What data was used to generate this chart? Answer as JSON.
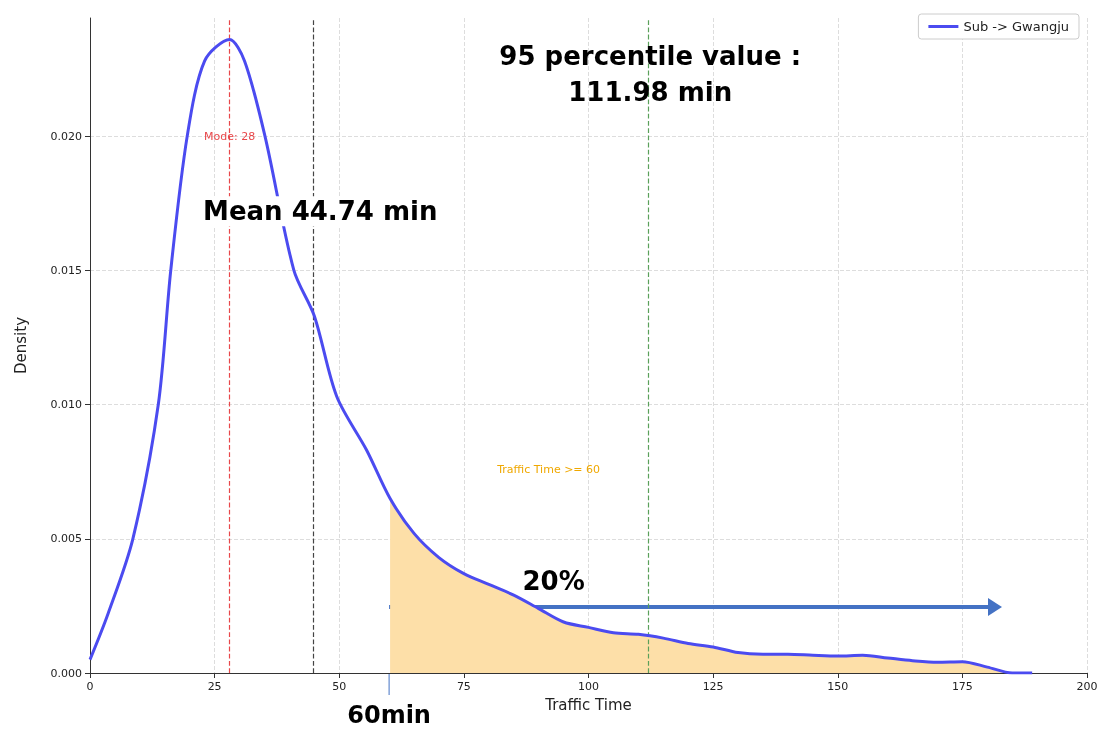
{
  "chart_data": {
    "type": "line",
    "xlabel": "Traffic Time",
    "ylabel": "Density",
    "xlim": [
      0,
      200
    ],
    "ylim": [
      0,
      0.0244
    ],
    "xticks": [
      0,
      25,
      50,
      75,
      100,
      125,
      150,
      175,
      200
    ],
    "yticks": [
      {
        "value": 0,
        "label": "0.000"
      },
      {
        "value": 0.005,
        "label": "0.005"
      },
      {
        "value": 0.01,
        "label": "0.010"
      },
      {
        "value": 0.015,
        "label": "0.015"
      },
      {
        "value": 0.02,
        "label": "0.020"
      }
    ],
    "grid": true,
    "legend": "top right",
    "line_style": "solid",
    "marker": "none",
    "series": [
      {
        "name": "Sub -> Gwangju",
        "color": "#4b4bf0",
        "x": [
          0,
          3.6,
          8.6,
          13.7,
          16.2,
          19.5,
          23,
          28,
          31,
          35.1,
          40.9,
          45,
          49.5,
          55.5,
          60.2,
          65,
          70,
          75,
          80,
          85,
          90,
          95,
          100,
          105,
          110,
          115,
          120,
          125,
          130,
          135,
          140,
          145,
          150,
          155,
          160,
          165,
          170,
          175,
          180,
          185,
          189
        ],
        "values": [
          0.0005,
          0.0022,
          0.005,
          0.01,
          0.015,
          0.02,
          0.0228,
          0.0236,
          0.0228,
          0.02,
          0.015,
          0.0133,
          0.0103,
          0.0083,
          0.0065,
          0.0052,
          0.0043,
          0.0037,
          0.0033,
          0.0029,
          0.0024,
          0.0019,
          0.0017,
          0.0015,
          0.00144,
          0.0013,
          0.0011,
          0.00097,
          0.00076,
          0.0007,
          0.0007,
          0.00066,
          0.00063,
          0.00066,
          0.00056,
          0.00046,
          0.0004,
          0.00042,
          0.00022,
          0,
          0
        ]
      },
      {
        "type": "area",
        "color": "#fddfa8",
        "x": [
          60.2,
          65,
          70,
          75,
          80,
          85,
          90,
          95,
          100,
          105,
          110,
          115,
          120,
          125,
          130,
          135,
          140,
          145,
          150,
          155,
          160,
          165,
          170,
          175,
          180,
          185,
          189
        ],
        "values": [
          0.0065,
          0.0052,
          0.0043,
          0.0037,
          0.0033,
          0.0029,
          0.0024,
          0.0019,
          0.0017,
          0.0015,
          0.00144,
          0.0013,
          0.0011,
          0.00097,
          0.00076,
          0.0007,
          0.0007,
          0.00066,
          0.00063,
          0.00066,
          0.00056,
          0.00046,
          0.0004,
          0.00042,
          0.00022,
          0,
          0
        ]
      }
    ],
    "ref_lines": [
      {
        "axis": "x",
        "value": 28,
        "label": "Mode: 28",
        "color": "#e8474a",
        "line_style": "dashed"
      },
      {
        "axis": "x",
        "value": 44.74,
        "label": "Mean 44.74 min",
        "color": "#444444",
        "line_style": "dashed"
      },
      {
        "axis": "x",
        "value": 111.98,
        "label": "95 percentile value :\n111.98 min",
        "color": "#5aa05a",
        "line_style": "dashed"
      }
    ],
    "annotations": [
      "Traffic Time >= 60",
      "20%",
      {
        "text": "60min",
        "x": 60
      }
    ]
  }
}
